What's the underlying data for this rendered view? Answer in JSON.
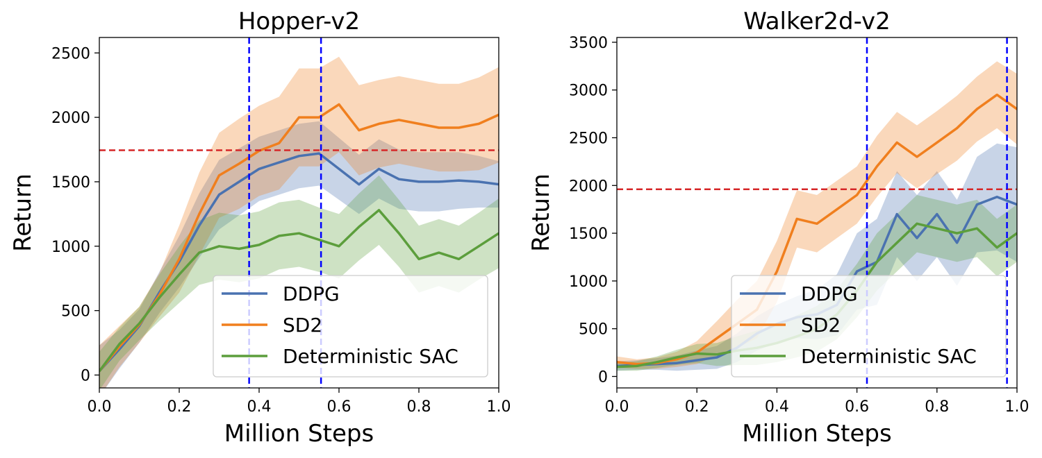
{
  "chart_data": [
    {
      "type": "line",
      "title": "Hopper-v2",
      "xlabel": "Million Steps",
      "ylabel": "Return",
      "xlim": [
        0.0,
        1.0
      ],
      "ylim": [
        -100,
        2620
      ],
      "xticks": [
        "0.0",
        "0.2",
        "0.4",
        "0.6",
        "0.8",
        "1.0"
      ],
      "xtick_values": [
        0,
        0.2,
        0.4,
        0.6,
        0.8,
        1.0
      ],
      "yticks": [
        "0",
        "500",
        "1000",
        "1500",
        "2000",
        "2500"
      ],
      "ytick_values": [
        0,
        500,
        1000,
        1500,
        2000,
        2500
      ],
      "hline": {
        "y": 1745,
        "color": "#d62728"
      },
      "vlines": [
        {
          "x": 0.375,
          "color": "#0000ff"
        },
        {
          "x": 0.555,
          "color": "#0000ff"
        }
      ],
      "legend_position": "lower-right",
      "series": [
        {
          "name": "DDPG",
          "color": "#4a72b0",
          "x": [
            0,
            0.05,
            0.1,
            0.15,
            0.2,
            0.25,
            0.3,
            0.35,
            0.4,
            0.45,
            0.5,
            0.55,
            0.6,
            0.65,
            0.7,
            0.75,
            0.8,
            0.85,
            0.9,
            0.95,
            1.0
          ],
          "y": [
            30,
            200,
            380,
            640,
            880,
            1160,
            1400,
            1500,
            1600,
            1650,
            1700,
            1720,
            1600,
            1480,
            1600,
            1520,
            1500,
            1500,
            1510,
            1500,
            1480
          ],
          "band": [
            200,
            150,
            130,
            160,
            200,
            250,
            270,
            260,
            250,
            250,
            250,
            250,
            240,
            230,
            230,
            230,
            230,
            230,
            220,
            200,
            180
          ]
        },
        {
          "name": "SD2",
          "color": "#f07f1e",
          "x": [
            0,
            0.05,
            0.1,
            0.15,
            0.2,
            0.25,
            0.3,
            0.35,
            0.4,
            0.45,
            0.5,
            0.55,
            0.6,
            0.65,
            0.7,
            0.75,
            0.8,
            0.85,
            0.9,
            0.95,
            1.0
          ],
          "y": [
            30,
            220,
            390,
            620,
            900,
            1250,
            1550,
            1640,
            1740,
            1800,
            2000,
            2000,
            2100,
            1900,
            1950,
            1980,
            1950,
            1920,
            1920,
            1950,
            2020
          ],
          "band": [
            200,
            160,
            140,
            170,
            260,
            320,
            330,
            350,
            350,
            360,
            380,
            380,
            370,
            350,
            340,
            340,
            340,
            340,
            340,
            360,
            370
          ]
        },
        {
          "name": "Deterministic SAC",
          "color": "#5c9e3c",
          "x": [
            0,
            0.05,
            0.1,
            0.15,
            0.2,
            0.25,
            0.3,
            0.35,
            0.4,
            0.45,
            0.5,
            0.55,
            0.6,
            0.65,
            0.7,
            0.75,
            0.8,
            0.85,
            0.9,
            0.95,
            1.0
          ],
          "y": [
            30,
            240,
            400,
            600,
            780,
            950,
            1000,
            980,
            1010,
            1080,
            1100,
            1050,
            1000,
            1150,
            1280,
            1100,
            900,
            950,
            900,
            1000,
            1100
          ],
          "band": [
            150,
            130,
            130,
            180,
            220,
            250,
            260,
            260,
            260,
            260,
            260,
            250,
            250,
            260,
            270,
            260,
            260,
            260,
            260,
            260,
            270
          ]
        }
      ]
    },
    {
      "type": "line",
      "title": "Walker2d-v2",
      "xlabel": "Million Steps",
      "ylabel": "Return",
      "xlim": [
        0.0,
        1.0
      ],
      "ylim": [
        -120,
        3550
      ],
      "xticks": [
        "0.0",
        "0.2",
        "0.4",
        "0.6",
        "0.8",
        "1.0"
      ],
      "xtick_values": [
        0,
        0.2,
        0.4,
        0.6,
        0.8,
        1.0
      ],
      "yticks": [
        "0",
        "500",
        "1000",
        "1500",
        "2000",
        "2500",
        "3000",
        "3500"
      ],
      "ytick_values": [
        0,
        500,
        1000,
        1500,
        2000,
        2500,
        3000,
        3500
      ],
      "hline": {
        "y": 1960,
        "color": "#d62728"
      },
      "vlines": [
        {
          "x": 0.625,
          "color": "#0000ff"
        },
        {
          "x": 0.975,
          "color": "#0000ff"
        }
      ],
      "legend_position": "lower-right",
      "series": [
        {
          "name": "DDPG",
          "color": "#4a72b0",
          "x": [
            0,
            0.05,
            0.1,
            0.15,
            0.2,
            0.25,
            0.3,
            0.35,
            0.4,
            0.45,
            0.5,
            0.55,
            0.6,
            0.65,
            0.7,
            0.75,
            0.8,
            0.85,
            0.9,
            0.95,
            1.0
          ],
          "y": [
            110,
            120,
            130,
            140,
            170,
            200,
            300,
            450,
            550,
            620,
            650,
            750,
            1100,
            1200,
            1700,
            1450,
            1700,
            1400,
            1800,
            1880,
            1800
          ],
          "band": [
            50,
            50,
            60,
            80,
            100,
            120,
            150,
            180,
            200,
            220,
            260,
            320,
            400,
            450,
            450,
            450,
            450,
            450,
            500,
            560,
            600
          ]
        },
        {
          "name": "SD2",
          "color": "#f07f1e",
          "x": [
            0,
            0.05,
            0.1,
            0.15,
            0.2,
            0.25,
            0.3,
            0.35,
            0.4,
            0.45,
            0.5,
            0.55,
            0.6,
            0.65,
            0.7,
            0.75,
            0.8,
            0.85,
            0.9,
            0.95,
            1.0
          ],
          "y": [
            150,
            130,
            140,
            180,
            250,
            400,
            550,
            700,
            1100,
            1650,
            1600,
            1750,
            1900,
            2200,
            2450,
            2300,
            2450,
            2600,
            2800,
            2950,
            2800
          ],
          "band": [
            60,
            50,
            60,
            80,
            120,
            180,
            250,
            300,
            320,
            300,
            300,
            300,
            300,
            320,
            320,
            330,
            330,
            340,
            340,
            350,
            370
          ]
        },
        {
          "name": "Deterministic SAC",
          "color": "#5c9e3c",
          "x": [
            0,
            0.05,
            0.1,
            0.15,
            0.2,
            0.25,
            0.3,
            0.35,
            0.4,
            0.45,
            0.5,
            0.55,
            0.6,
            0.65,
            0.7,
            0.75,
            0.8,
            0.85,
            0.9,
            0.95,
            1.0
          ],
          "y": [
            100,
            110,
            150,
            200,
            240,
            230,
            270,
            300,
            350,
            420,
            500,
            650,
            900,
            1200,
            1400,
            1600,
            1550,
            1500,
            1550,
            1350,
            1500
          ],
          "band": [
            40,
            50,
            60,
            80,
            100,
            120,
            150,
            180,
            200,
            220,
            240,
            260,
            280,
            300,
            300,
            300,
            300,
            300,
            300,
            300,
            300
          ]
        }
      ]
    }
  ]
}
